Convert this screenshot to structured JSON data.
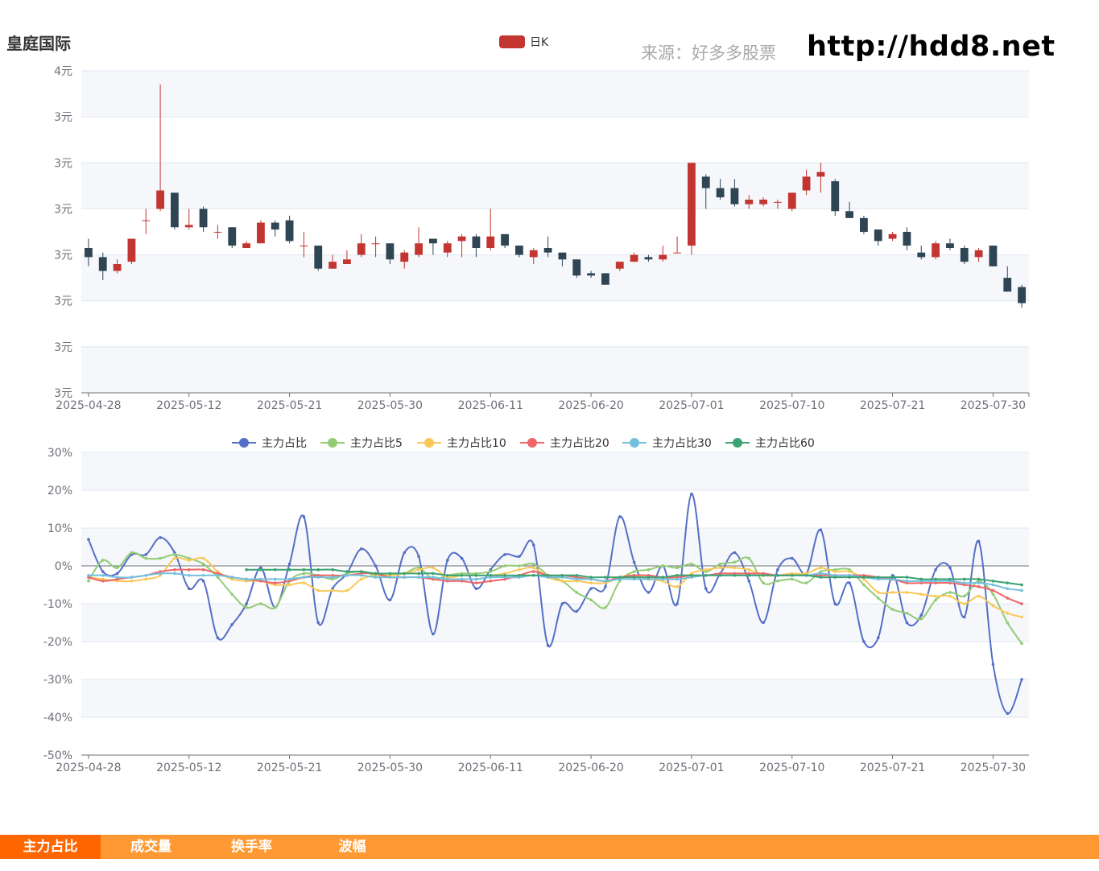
{
  "header": {
    "stock_name": "皇庭国际",
    "source": "来源：好多多股票",
    "url": "http://hdd8.net"
  },
  "colors": {
    "up": "#c23531",
    "down": "#2f4554",
    "grid_band": "#f5f7fb",
    "grid_line": "#e0e6f1",
    "tab_bar": "#ff9933",
    "tab_active": "#ff6600"
  },
  "tabs": [
    {
      "label": "主力占比",
      "active": true
    },
    {
      "label": "成交量",
      "active": false
    },
    {
      "label": "换手率",
      "active": false
    },
    {
      "label": "波幅",
      "active": false
    }
  ],
  "chart_data": [
    {
      "type": "candlestick",
      "legend": [
        "日K"
      ],
      "x_ticks": [
        "2025-04-28",
        "2025-05-12",
        "2025-05-21",
        "2025-05-30",
        "2025-06-11",
        "2025-06-20",
        "2025-07-01",
        "2025-07-10",
        "2025-07-21",
        "2025-07-30"
      ],
      "y_ticks": [
        "3元",
        "3元",
        "3元",
        "3元",
        "3元",
        "3元",
        "3元",
        "4元"
      ],
      "ylim": [
        2.5,
        3.9
      ],
      "series": [
        {
          "name": "日K",
          "candles": [
            [
              3.13,
              3.09,
              3.05,
              3.17
            ],
            [
              3.09,
              3.03,
              2.99,
              3.11
            ],
            [
              3.03,
              3.06,
              3.02,
              3.08
            ],
            [
              3.07,
              3.17,
              3.06,
              3.17
            ],
            [
              3.25,
              3.25,
              3.19,
              3.3
            ],
            [
              3.3,
              3.38,
              3.29,
              3.84
            ],
            [
              3.37,
              3.22,
              3.21,
              3.37
            ],
            [
              3.22,
              3.23,
              3.21,
              3.3
            ],
            [
              3.3,
              3.22,
              3.2,
              3.31
            ],
            [
              3.2,
              3.2,
              3.17,
              3.23
            ],
            [
              3.22,
              3.14,
              3.13,
              3.22
            ],
            [
              3.13,
              3.15,
              3.14,
              3.16
            ],
            [
              3.15,
              3.24,
              3.15,
              3.25
            ],
            [
              3.24,
              3.21,
              3.18,
              3.25
            ],
            [
              3.25,
              3.16,
              3.15,
              3.27
            ],
            [
              3.14,
              3.14,
              3.09,
              3.2
            ],
            [
              3.14,
              3.04,
              3.03,
              3.14
            ],
            [
              3.04,
              3.07,
              3.04,
              3.1
            ],
            [
              3.06,
              3.08,
              3.06,
              3.12
            ],
            [
              3.1,
              3.15,
              3.09,
              3.19
            ],
            [
              3.15,
              3.15,
              3.09,
              3.18
            ],
            [
              3.15,
              3.08,
              3.06,
              3.15
            ],
            [
              3.07,
              3.11,
              3.04,
              3.12
            ],
            [
              3.1,
              3.15,
              3.09,
              3.22
            ],
            [
              3.17,
              3.15,
              3.1,
              3.17
            ],
            [
              3.11,
              3.15,
              3.09,
              3.16
            ],
            [
              3.16,
              3.18,
              3.09,
              3.19
            ],
            [
              3.18,
              3.13,
              3.09,
              3.19
            ],
            [
              3.13,
              3.18,
              3.12,
              3.3
            ],
            [
              3.19,
              3.14,
              3.13,
              3.19
            ],
            [
              3.14,
              3.1,
              3.09,
              3.14
            ],
            [
              3.09,
              3.12,
              3.06,
              3.13
            ],
            [
              3.13,
              3.11,
              3.09,
              3.18
            ],
            [
              3.11,
              3.08,
              3.05,
              3.11
            ],
            [
              3.08,
              3.01,
              3.0,
              3.08
            ],
            [
              3.02,
              3.01,
              3.0,
              3.03
            ],
            [
              3.02,
              2.97,
              2.97,
              3.02
            ],
            [
              3.04,
              3.07,
              3.03,
              3.07
            ],
            [
              3.07,
              3.1,
              3.07,
              3.11
            ],
            [
              3.09,
              3.08,
              3.07,
              3.1
            ],
            [
              3.08,
              3.1,
              3.07,
              3.14
            ],
            [
              3.11,
              3.11,
              3.11,
              3.18
            ],
            [
              3.14,
              3.5,
              3.1,
              3.5
            ],
            [
              3.44,
              3.39,
              3.3,
              3.45
            ],
            [
              3.39,
              3.35,
              3.34,
              3.43
            ],
            [
              3.39,
              3.32,
              3.31,
              3.43
            ],
            [
              3.32,
              3.34,
              3.3,
              3.36
            ],
            [
              3.32,
              3.34,
              3.31,
              3.35
            ],
            [
              3.33,
              3.33,
              3.3,
              3.34
            ],
            [
              3.3,
              3.37,
              3.29,
              3.37
            ],
            [
              3.38,
              3.44,
              3.36,
              3.47
            ],
            [
              3.44,
              3.46,
              3.37,
              3.5
            ],
            [
              3.42,
              3.29,
              3.27,
              3.43
            ],
            [
              3.29,
              3.26,
              3.26,
              3.33
            ],
            [
              3.26,
              3.2,
              3.19,
              3.27
            ],
            [
              3.21,
              3.16,
              3.14,
              3.21
            ],
            [
              3.17,
              3.19,
              3.16,
              3.2
            ],
            [
              3.2,
              3.14,
              3.12,
              3.22
            ],
            [
              3.11,
              3.09,
              3.08,
              3.14
            ],
            [
              3.09,
              3.15,
              3.08,
              3.16
            ],
            [
              3.15,
              3.13,
              3.12,
              3.17
            ],
            [
              3.13,
              3.07,
              3.06,
              3.14
            ],
            [
              3.09,
              3.12,
              3.07,
              3.13
            ],
            [
              3.14,
              3.05,
              3.05,
              3.14
            ],
            [
              3.0,
              2.94,
              2.94,
              3.05
            ],
            [
              2.96,
              2.89,
              2.87,
              2.97
            ]
          ]
        }
      ]
    },
    {
      "type": "line",
      "legend_position": "top",
      "x_ticks": [
        "2025-04-28",
        "2025-05-12",
        "2025-05-21",
        "2025-05-30",
        "2025-06-11",
        "2025-06-20",
        "2025-07-01",
        "2025-07-10",
        "2025-07-21",
        "2025-07-30"
      ],
      "y_ticks": [
        "-50%",
        "-40%",
        "-30%",
        "-20%",
        "-10%",
        "0%",
        "10%",
        "20%",
        "30%"
      ],
      "ylim": [
        -50,
        30
      ],
      "series": [
        {
          "name": "主力占比",
          "color": "#5470c6",
          "offset": 0,
          "values": [
            7.0,
            -1.5,
            -2.0,
            3.0,
            3.0,
            7.5,
            3.5,
            -6.0,
            -4.0,
            -19.0,
            -15.5,
            -10.0,
            -0.5,
            -11.0,
            0.5,
            13.0,
            -15.0,
            -6.0,
            -2.0,
            4.5,
            0.0,
            -9.0,
            3.5,
            2.5,
            -18.0,
            1.5,
            2.0,
            -6.0,
            -1.0,
            3.0,
            2.5,
            5.5,
            -21.0,
            -10.0,
            -12.0,
            -6.0,
            -5.5,
            13.0,
            1.0,
            -7.0,
            0.0,
            -10.0,
            19.0,
            -6.0,
            -2.0,
            3.5,
            -4.0,
            -15.0,
            -1.0,
            2.0,
            -2.0,
            9.5,
            -10.0,
            -4.5,
            -20.0,
            -19.0,
            -2.5,
            -15.0,
            -13.0,
            -1.0,
            -0.5,
            -13.5,
            6.5,
            -26.0,
            -39.0,
            -30.0
          ]
        },
        {
          "name": "主力占比5",
          "color": "#91cc75",
          "offset": 0,
          "values": [
            -4.0,
            1.5,
            -0.5,
            3.5,
            2.0,
            2.0,
            3.0,
            2.0,
            0.5,
            -3.0,
            -7.5,
            -11.0,
            -10.0,
            -11.0,
            -4.0,
            -2.0,
            -2.5,
            -3.5,
            -2.0,
            -1.5,
            -2.5,
            -2.5,
            -2.0,
            -0.5,
            -3.5,
            -2.5,
            -2.0,
            -2.0,
            -1.5,
            0.0,
            0.0,
            0.5,
            -2.5,
            -4.0,
            -7.0,
            -9.0,
            -11.0,
            -4.0,
            -1.5,
            -1.0,
            0.0,
            -0.5,
            0.5,
            -1.5,
            0.5,
            1.0,
            2.0,
            -4.5,
            -4.0,
            -3.5,
            -4.5,
            -1.5,
            -1.0,
            -1.0,
            -5.0,
            -8.5,
            -11.5,
            -12.5,
            -14.0,
            -9.0,
            -7.0,
            -8.0,
            -4.0,
            -7.5,
            -15.0,
            -20.5
          ]
        },
        {
          "name": "主力占比10",
          "color": "#fac858",
          "offset": 0,
          "values": [
            -3.0,
            -3.5,
            -4.0,
            -4.0,
            -3.5,
            -2.5,
            2.0,
            1.5,
            2.0,
            -1.5,
            -3.5,
            -4.0,
            -4.0,
            -5.0,
            -5.0,
            -4.5,
            -6.5,
            -6.5,
            -6.5,
            -3.5,
            -2.5,
            -2.5,
            -2.0,
            -1.0,
            -0.5,
            -3.0,
            -2.5,
            -2.5,
            -2.5,
            -2.0,
            -1.0,
            -0.5,
            -3.0,
            -4.0,
            -4.0,
            -4.5,
            -4.5,
            -3.0,
            -2.5,
            -3.5,
            -4.0,
            -5.5,
            -2.0,
            -1.0,
            -0.5,
            -0.5,
            -1.0,
            -2.5,
            -2.5,
            -2.0,
            -2.0,
            -0.5,
            -1.5,
            -1.5,
            -3.5,
            -7.0,
            -7.0,
            -7.0,
            -7.5,
            -8.0,
            -8.0,
            -10.0,
            -8.0,
            -10.5,
            -12.5,
            -13.5
          ]
        },
        {
          "name": "主力占比20",
          "color": "#ee6666",
          "offset": 0,
          "values": [
            -3.0,
            -4.0,
            -3.5,
            -3.0,
            -2.5,
            -1.5,
            -1.0,
            -1.0,
            -1.0,
            -2.0,
            -3.0,
            -3.5,
            -4.0,
            -4.5,
            -4.0,
            -3.0,
            -2.5,
            -2.5,
            -2.5,
            -2.0,
            -2.0,
            -3.0,
            -3.0,
            -3.0,
            -3.5,
            -4.0,
            -4.0,
            -4.5,
            -4.0,
            -3.5,
            -2.5,
            -1.5,
            -2.5,
            -2.5,
            -3.0,
            -3.5,
            -4.0,
            -3.0,
            -2.5,
            -2.5,
            -3.0,
            -3.0,
            -2.5,
            -2.5,
            -2.0,
            -2.0,
            -2.0,
            -2.0,
            -2.5,
            -2.5,
            -2.5,
            -2.5,
            -2.5,
            -2.5,
            -2.5,
            -3.0,
            -3.5,
            -4.5,
            -4.5,
            -4.5,
            -4.5,
            -5.0,
            -5.5,
            -6.5,
            -8.5,
            -10.0
          ]
        },
        {
          "name": "主力占比30",
          "color": "#73c0de",
          "offset": 0,
          "values": [
            -2.5,
            -2.5,
            -3.0,
            -3.0,
            -2.5,
            -2.0,
            -2.0,
            -2.5,
            -2.5,
            -2.5,
            -3.0,
            -3.5,
            -3.5,
            -3.5,
            -3.5,
            -3.0,
            -3.0,
            -3.0,
            -2.5,
            -2.5,
            -3.0,
            -3.0,
            -3.0,
            -3.0,
            -3.0,
            -3.5,
            -3.5,
            -3.5,
            -3.0,
            -3.0,
            -3.0,
            -2.5,
            -3.0,
            -3.0,
            -3.5,
            -3.5,
            -4.0,
            -3.5,
            -3.5,
            -3.5,
            -3.5,
            -3.5,
            -3.0,
            -2.5,
            -2.5,
            -2.5,
            -2.5,
            -2.5,
            -2.5,
            -2.5,
            -2.5,
            -2.0,
            -2.5,
            -2.5,
            -3.0,
            -3.5,
            -3.5,
            -4.0,
            -4.0,
            -4.0,
            -4.0,
            -4.5,
            -4.5,
            -5.0,
            -6.0,
            -6.5
          ]
        },
        {
          "name": "主力占比60",
          "color": "#3ba272",
          "offset": 11,
          "values": [
            -1.0,
            -1.0,
            -1.0,
            -1.0,
            -1.0,
            -1.0,
            -1.0,
            -1.5,
            -1.5,
            -2.0,
            -2.0,
            -2.0,
            -2.0,
            -2.0,
            -2.5,
            -2.5,
            -2.5,
            -2.5,
            -2.5,
            -2.5,
            -2.5,
            -2.5,
            -2.5,
            -2.5,
            -3.0,
            -3.0,
            -3.0,
            -3.0,
            -3.0,
            -3.0,
            -2.5,
            -2.5,
            -2.5,
            -2.5,
            -2.5,
            -2.5,
            -2.5,
            -2.5,
            -2.5,
            -2.5,
            -3.0,
            -3.0,
            -3.0,
            -3.0,
            -3.0,
            -3.0,
            -3.0,
            -3.5,
            -3.5,
            -3.5,
            -3.5,
            -3.5,
            -4.0,
            -4.5,
            -5.0
          ]
        }
      ]
    }
  ]
}
